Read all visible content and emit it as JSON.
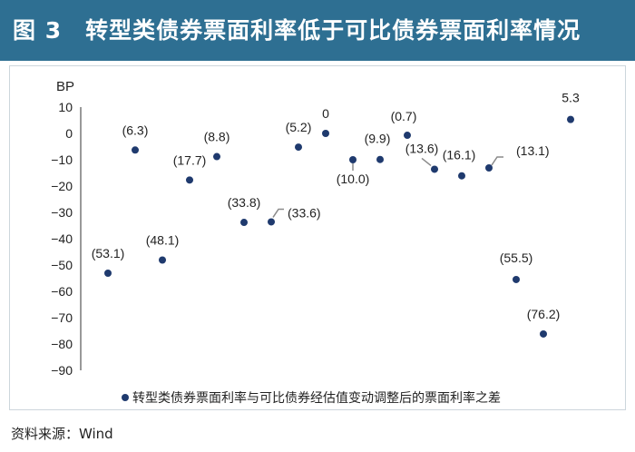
{
  "header": {
    "title": "图 3　转型类债券票面利率低于可比债券票面利率情况"
  },
  "chart_data": {
    "type": "scatter",
    "ylabel": "BP",
    "ylim": [
      -90,
      10
    ],
    "yticks": [
      "10",
      "0",
      "−10",
      "−20",
      "−30",
      "−40",
      "−50",
      "−60",
      "−70",
      "−80",
      "−90"
    ],
    "series": [
      {
        "name": "转型类债券票面利率与可比债券经估值变动调整后的票面利率之差",
        "values": [
          -53.1,
          -6.3,
          -48.1,
          -17.7,
          -8.8,
          -33.8,
          -33.6,
          -5.2,
          0,
          -10.0,
          -9.9,
          -0.7,
          -13.6,
          -16.1,
          -13.1,
          -55.5,
          -76.2,
          5.3
        ],
        "labels": [
          "(53.1)",
          "(6.3)",
          "(48.1)",
          "(17.7)",
          "(8.8)",
          "(33.8)",
          "(33.6)",
          "(5.2)",
          "0",
          "(10.0)",
          "(9.9)",
          "(0.7)",
          "(13.6)",
          "(16.1)",
          "(13.1)",
          "(55.5)",
          "(76.2)",
          "5.3"
        ]
      }
    ],
    "colors": {
      "marker": "#1f3a6e",
      "axis": "#999999",
      "leader": "#8a8a8a",
      "title_bg": "#2e6f92"
    }
  },
  "legend": {
    "text": "转型类债券票面利率与可比债券经估值变动调整后的票面利率之差"
  },
  "footer": {
    "source": "资料来源：Wind"
  }
}
